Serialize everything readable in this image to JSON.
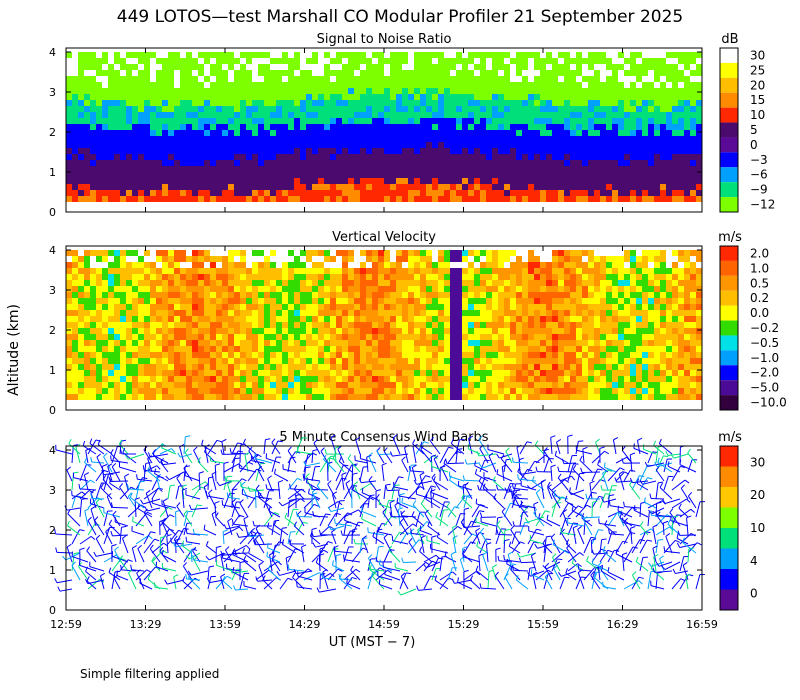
{
  "title": "449 LOTOS—test Marshall CO Modular Profiler 21 September 2025",
  "ylabel": "Altitude (km)",
  "xlabel": "UT  (MST − 7)",
  "footnote": "Simple filtering applied",
  "chart_data": [
    {
      "type": "heatmap",
      "title": "Signal to Noise Ratio",
      "units": "dB",
      "x_ticks": [
        "12:59",
        "13:29",
        "13:59",
        "14:29",
        "14:59",
        "15:29",
        "15:59",
        "16:29",
        "16:59"
      ],
      "y_ticks": [
        "0",
        "1",
        "2",
        "3",
        "4"
      ],
      "ylim": [
        0,
        4.1
      ],
      "colorbar": {
        "labels": [
          "30",
          "25",
          "20",
          "15",
          "10",
          "5",
          "0",
          "−3",
          "−6",
          "−9",
          "−12"
        ],
        "colors": [
          "#ffffff",
          "#ffff00",
          "#ffbe00",
          "#ff8c00",
          "#ff2800",
          "#4b0b6e",
          "#5a0a96",
          "#0000ff",
          "#00a0ff",
          "#00e07a",
          "#7dff00"
        ]
      },
      "profile": [
        {
          "alt_max": 0.7,
          "level": "10"
        },
        {
          "alt_max": 1.5,
          "level": "5"
        },
        {
          "alt_max": 2.2,
          "level": "−3"
        },
        {
          "alt_max": 2.9,
          "level": "−9"
        },
        {
          "alt_max": 4.1,
          "level": "−12"
        }
      ]
    },
    {
      "type": "heatmap",
      "title": "Vertical Velocity",
      "units": "m/s",
      "x_ticks": [
        "12:59",
        "13:29",
        "13:59",
        "14:29",
        "14:59",
        "15:29",
        "15:59",
        "16:29",
        "16:59"
      ],
      "y_ticks": [
        "0",
        "1",
        "2",
        "3",
        "4"
      ],
      "ylim": [
        0,
        4.1
      ],
      "colorbar": {
        "labels": [
          "2.0",
          "1.0",
          "0.5",
          "0.2",
          "0.0",
          "−0.2",
          "−0.5",
          "−1.0",
          "−2.0",
          "−5.0",
          "−10.0"
        ],
        "colors": [
          "#ff2800",
          "#ff6400",
          "#ff9600",
          "#ffbe00",
          "#ffff00",
          "#32dc00",
          "#00e0e6",
          "#00a0ff",
          "#0000ff",
          "#4b0b96",
          "#32003c"
        ]
      },
      "dominant_level": "0.2"
    },
    {
      "type": "barbs",
      "title": "5 Minute Consensus Wind Barbs",
      "units": "m/s",
      "x_ticks": [
        "12:59",
        "13:29",
        "13:59",
        "14:29",
        "14:59",
        "15:29",
        "15:59",
        "16:29",
        "16:59"
      ],
      "y_ticks": [
        "0",
        "1",
        "2",
        "3",
        "4"
      ],
      "ylim": [
        0,
        4.1
      ],
      "colorbar": {
        "labels": [
          "30",
          "20",
          "10",
          "4",
          "0"
        ],
        "colors": [
          "#ff2800",
          "#ff8c00",
          "#ffc800",
          "#7dff00",
          "#00e07a",
          "#00a0ff",
          "#0000ff",
          "#5a0a96"
        ]
      },
      "dominant_speed_ms": "0–4"
    }
  ]
}
